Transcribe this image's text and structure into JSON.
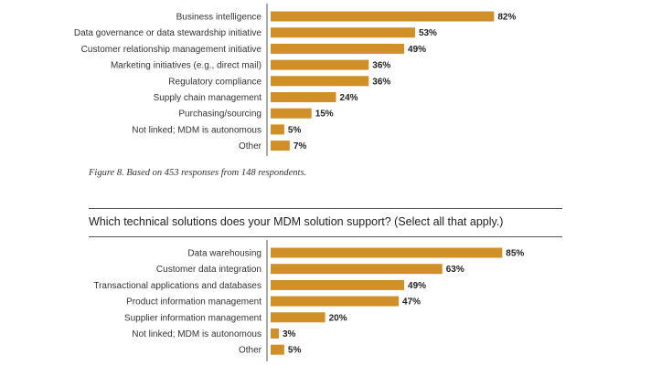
{
  "colors": {
    "bar": "#d08f27",
    "axis": "#555555"
  },
  "chart_data": [
    {
      "type": "bar",
      "orientation": "horizontal",
      "categories": [
        "Business intelligence",
        "Data governance or data stewardship initiative",
        "Customer relationship management initiative",
        "Marketing initiatives (e.g., direct mail)",
        "Regulatory compliance",
        "Supply chain management",
        "Purchasing/sourcing",
        "Not linked; MDM is autonomous",
        "Other"
      ],
      "values": [
        82,
        53,
        49,
        36,
        36,
        24,
        15,
        5,
        7
      ],
      "value_labels": [
        "82%",
        "53%",
        "49%",
        "36%",
        "36%",
        "24%",
        "15%",
        "5%",
        "7%"
      ],
      "unit": "%",
      "caption": "Figure 8. Based on 453 responses from 148 respondents."
    },
    {
      "type": "bar",
      "orientation": "horizontal",
      "title": "Which technical solutions does your MDM solution support? (Select all that apply.)",
      "categories": [
        "Data warehousing",
        "Customer data integration",
        "Transactional applications and databases",
        "Product information management",
        "Supplier information management",
        "Not linked; MDM is autonomous",
        "Other"
      ],
      "values": [
        85,
        63,
        49,
        47,
        20,
        3,
        5
      ],
      "value_labels": [
        "85%",
        "63%",
        "49%",
        "47%",
        "20%",
        "3%",
        "5%"
      ],
      "unit": "%"
    }
  ]
}
